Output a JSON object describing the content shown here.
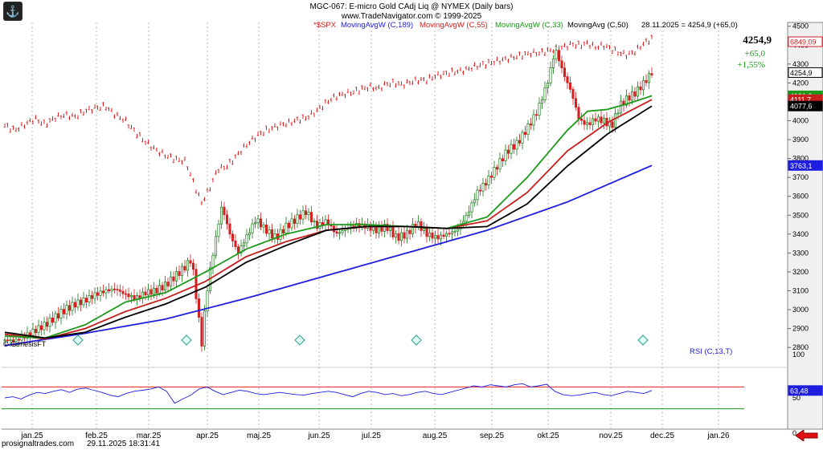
{
  "header": {
    "title": "MGC-067: E-micro Gold CAdj Liq @ NYMEX  (Daily bars)",
    "subtitle": "www.TradeNavigator.com © 1999-2025"
  },
  "legend": [
    {
      "label": "*$SPX",
      "color": "#d42020"
    },
    {
      "label": "MovingAvgW (C,189)",
      "color": "#1e1ee0"
    },
    {
      "label": "MovingAvgW (C,55)",
      "color": "#d42020"
    },
    {
      "label": "MovingAvgW (C,33)",
      "color": "#1a9a1a"
    },
    {
      "label": "MovingAvg (C,50)",
      "color": "#000000"
    },
    {
      "label": "28.11.2025 = 4254,9 (+65,0)",
      "color": "#000000"
    }
  ],
  "quote": {
    "last": "4254,9",
    "change": "+65,0",
    "pct": "+1,55%",
    "change_color": "#1a9a1a"
  },
  "watermark": "© GenesisFT",
  "footer": {
    "source": "prosignaltrades.com",
    "timestamp": "29.11.2025 18:31:41"
  },
  "colors": {
    "grid": "#b8b8b8",
    "axis_bg": "#ffffff",
    "up": "#1a7a1a",
    "down": "#d42020",
    "ma189": "#1e1ee0",
    "ma55": "#c81e1e",
    "ma33": "#1a9a1a",
    "ma50": "#000000",
    "spx": "#e02020",
    "rsi": "#1e1ee0",
    "rsi_upper": "#e02020",
    "rsi_lower": "#1a9a1a"
  },
  "chart_data": [
    {
      "type": "candlestick",
      "title": "MGC-067: E-micro Gold CAdj Liq @ NYMEX  (Daily bars)",
      "x_tick_labels": [
        "jan.25",
        "feb.25",
        "mar.25",
        "apr.25",
        "maj.25",
        "jun.25",
        "jul.25",
        "aug.25",
        "sep.25",
        "okt.25",
        "nov.25",
        "dec.25",
        "jan.26"
      ],
      "y_ticks": [
        2800,
        2900,
        3000,
        3100,
        3200,
        3300,
        3400,
        3500,
        3600,
        3700,
        3800,
        3900,
        4000,
        4100,
        4200,
        4300,
        4400,
        4500
      ],
      "ylim": [
        2720,
        4520
      ],
      "grid": "vertical dotted at months",
      "price_path": [
        [
          0,
          2840
        ],
        [
          5,
          2835
        ],
        [
          10,
          2860
        ],
        [
          15,
          2890
        ],
        [
          20,
          2920
        ],
        [
          25,
          2960
        ],
        [
          30,
          3000
        ],
        [
          35,
          3030
        ],
        [
          40,
          3050
        ],
        [
          45,
          3080
        ],
        [
          50,
          3100
        ],
        [
          55,
          3110
        ],
        [
          60,
          3080
        ],
        [
          65,
          3060
        ],
        [
          70,
          3090
        ],
        [
          75,
          3100
        ],
        [
          80,
          3130
        ],
        [
          85,
          3180
        ],
        [
          90,
          3230
        ],
        [
          93,
          3270
        ],
        [
          96,
          3000
        ],
        [
          98,
          2820
        ],
        [
          100,
          3050
        ],
        [
          102,
          3200
        ],
        [
          105,
          3380
        ],
        [
          108,
          3550
        ],
        [
          112,
          3400
        ],
        [
          116,
          3300
        ],
        [
          120,
          3380
        ],
        [
          125,
          3480
        ],
        [
          130,
          3420
        ],
        [
          135,
          3380
        ],
        [
          140,
          3440
        ],
        [
          145,
          3480
        ],
        [
          150,
          3520
        ],
        [
          155,
          3440
        ],
        [
          160,
          3470
        ],
        [
          165,
          3400
        ],
        [
          170,
          3430
        ],
        [
          175,
          3450
        ],
        [
          180,
          3440
        ],
        [
          185,
          3420
        ],
        [
          190,
          3440
        ],
        [
          195,
          3380
        ],
        [
          200,
          3400
        ],
        [
          205,
          3460
        ],
        [
          210,
          3400
        ],
        [
          215,
          3380
        ],
        [
          220,
          3400
        ],
        [
          225,
          3420
        ],
        [
          230,
          3500
        ],
        [
          235,
          3620
        ],
        [
          240,
          3680
        ],
        [
          245,
          3760
        ],
        [
          250,
          3840
        ],
        [
          255,
          3880
        ],
        [
          260,
          3960
        ],
        [
          265,
          4050
        ],
        [
          270,
          4200
        ],
        [
          274,
          4380
        ],
        [
          278,
          4250
        ],
        [
          282,
          4150
        ],
        [
          286,
          4000
        ],
        [
          290,
          3980
        ],
        [
          294,
          4010
        ],
        [
          298,
          4000
        ],
        [
          302,
          3970
        ],
        [
          306,
          4080
        ],
        [
          310,
          4120
        ],
        [
          314,
          4150
        ],
        [
          318,
          4200
        ],
        [
          322,
          4254.9
        ]
      ],
      "overlay": {
        "symbol": "*$SPX",
        "axis": "secondary",
        "last": "6849,09",
        "value_range": [
          4800,
          6900
        ],
        "path": [
          [
            0,
            5950
          ],
          [
            5,
            5900
          ],
          [
            10,
            5960
          ],
          [
            15,
            6020
          ],
          [
            20,
            5960
          ],
          [
            25,
            6030
          ],
          [
            30,
            6060
          ],
          [
            35,
            6040
          ],
          [
            40,
            6100
          ],
          [
            45,
            6130
          ],
          [
            50,
            6150
          ],
          [
            55,
            6060
          ],
          [
            60,
            6000
          ],
          [
            65,
            5880
          ],
          [
            70,
            5780
          ],
          [
            75,
            5700
          ],
          [
            80,
            5640
          ],
          [
            85,
            5600
          ],
          [
            90,
            5580
          ],
          [
            95,
            5300
          ],
          [
            98,
            5150
          ],
          [
            102,
            5300
          ],
          [
            106,
            5500
          ],
          [
            110,
            5520
          ],
          [
            114,
            5600
          ],
          [
            118,
            5700
          ],
          [
            122,
            5780
          ],
          [
            126,
            5850
          ],
          [
            130,
            5900
          ],
          [
            134,
            5930
          ],
          [
            138,
            5960
          ],
          [
            142,
            5980
          ],
          [
            146,
            6010
          ],
          [
            150,
            6030
          ],
          [
            154,
            6080
          ],
          [
            158,
            6150
          ],
          [
            162,
            6220
          ],
          [
            166,
            6260
          ],
          [
            170,
            6280
          ],
          [
            174,
            6300
          ],
          [
            178,
            6330
          ],
          [
            182,
            6350
          ],
          [
            186,
            6330
          ],
          [
            190,
            6380
          ],
          [
            194,
            6390
          ],
          [
            198,
            6370
          ],
          [
            202,
            6400
          ],
          [
            206,
            6420
          ],
          [
            210,
            6420
          ],
          [
            214,
            6460
          ],
          [
            218,
            6480
          ],
          [
            222,
            6500
          ],
          [
            226,
            6510
          ],
          [
            230,
            6530
          ],
          [
            234,
            6560
          ],
          [
            238,
            6580
          ],
          [
            242,
            6600
          ],
          [
            246,
            6620
          ],
          [
            250,
            6640
          ],
          [
            254,
            6660
          ],
          [
            258,
            6680
          ],
          [
            262,
            6700
          ],
          [
            266,
            6700
          ],
          [
            270,
            6720
          ],
          [
            274,
            6740
          ],
          [
            278,
            6760
          ],
          [
            282,
            6790
          ],
          [
            286,
            6780
          ],
          [
            290,
            6800
          ],
          [
            294,
            6760
          ],
          [
            298,
            6780
          ],
          [
            302,
            6740
          ],
          [
            306,
            6700
          ],
          [
            310,
            6680
          ],
          [
            314,
            6720
          ],
          [
            318,
            6800
          ],
          [
            322,
            6849.09
          ]
        ]
      },
      "series": [
        {
          "name": "MovingAvgW (C,189)",
          "last": "3763,1",
          "path": [
            [
              0,
              2810
            ],
            [
              40,
              2875
            ],
            [
              80,
              2950
            ],
            [
              120,
              3060
            ],
            [
              160,
              3180
            ],
            [
              200,
              3300
            ],
            [
              240,
              3420
            ],
            [
              280,
              3570
            ],
            [
              322,
              3763.1
            ]
          ]
        },
        {
          "name": "MovingAvgW (C,55)",
          "last": "4111,7",
          "path": [
            [
              0,
              2870
            ],
            [
              20,
              2845
            ],
            [
              40,
              2900
            ],
            [
              60,
              2990
            ],
            [
              80,
              3060
            ],
            [
              100,
              3150
            ],
            [
              120,
              3280
            ],
            [
              140,
              3360
            ],
            [
              160,
              3420
            ],
            [
              180,
              3440
            ],
            [
              200,
              3440
            ],
            [
              220,
              3430
            ],
            [
              240,
              3470
            ],
            [
              260,
              3620
            ],
            [
              280,
              3840
            ],
            [
              300,
              3990
            ],
            [
              322,
              4111.7
            ]
          ]
        },
        {
          "name": "MovingAvgW (C,33)",
          "last": "4131,9",
          "path": [
            [
              0,
              2860
            ],
            [
              20,
              2850
            ],
            [
              40,
              2920
            ],
            [
              60,
              3040
            ],
            [
              80,
              3090
            ],
            [
              100,
              3200
            ],
            [
              120,
              3320
            ],
            [
              140,
              3400
            ],
            [
              160,
              3450
            ],
            [
              180,
              3450
            ],
            [
              200,
              3440
            ],
            [
              220,
              3430
            ],
            [
              240,
              3490
            ],
            [
              260,
              3700
            ],
            [
              280,
              3950
            ],
            [
              290,
              4050
            ],
            [
              300,
              4060
            ],
            [
              310,
              4090
            ],
            [
              322,
              4131.9
            ]
          ]
        },
        {
          "name": "MovingAvg (C,50)",
          "last": "4077,6",
          "path": [
            [
              0,
              2880
            ],
            [
              20,
              2850
            ],
            [
              40,
              2880
            ],
            [
              60,
              2960
            ],
            [
              80,
              3030
            ],
            [
              100,
              3120
            ],
            [
              120,
              3250
            ],
            [
              140,
              3340
            ],
            [
              160,
              3420
            ],
            [
              180,
              3440
            ],
            [
              200,
              3440
            ],
            [
              220,
              3430
            ],
            [
              240,
              3440
            ],
            [
              260,
              3560
            ],
            [
              280,
              3760
            ],
            [
              300,
              3930
            ],
            [
              322,
              4077.6
            ]
          ]
        }
      ],
      "last_labels": {
        "price": "4254,9",
        "ma33": "4131,9",
        "ma55": "4111,7",
        "ma50": "4077,6",
        "ma189": "3763,1",
        "spx": "6849,09"
      }
    },
    {
      "type": "line",
      "title": "RSI (C,13,T)",
      "y_ticks": [
        0,
        50,
        100
      ],
      "ylim": [
        0,
        100
      ],
      "levels": [
        {
          "value": 70,
          "color": "#e02020"
        },
        {
          "value": 30,
          "color": "#1a9a1a"
        }
      ],
      "last": "63,48",
      "values": [
        50,
        52,
        48,
        55,
        60,
        58,
        62,
        65,
        60,
        66,
        68,
        64,
        60,
        55,
        52,
        58,
        62,
        64,
        66,
        70,
        62,
        40,
        48,
        55,
        66,
        70,
        62,
        56,
        60,
        64,
        62,
        58,
        56,
        58,
        60,
        58,
        56,
        55,
        58,
        60,
        62,
        60,
        56,
        52,
        58,
        62,
        60,
        56,
        58,
        54,
        56,
        60,
        62,
        58,
        56,
        60,
        64,
        68,
        72,
        70,
        74,
        72,
        70,
        74,
        76,
        70,
        72,
        75,
        62,
        56,
        54,
        55,
        58,
        60,
        56,
        54,
        58,
        62,
        60,
        58,
        63.48
      ]
    }
  ]
}
